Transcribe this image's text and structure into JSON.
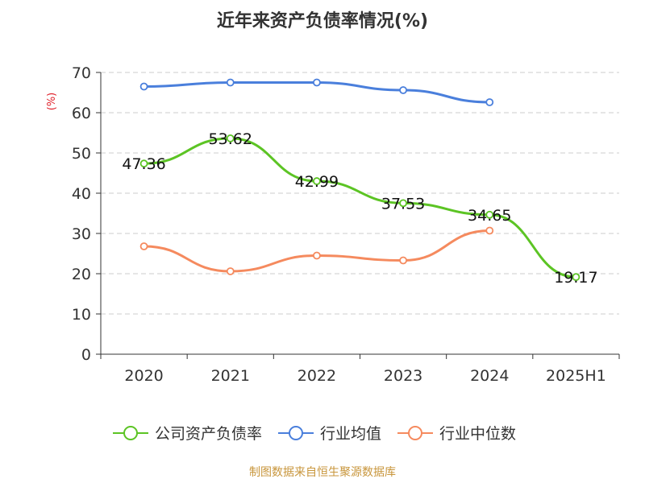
{
  "chart_data": {
    "type": "line",
    "title": "近年来资产负债率情况(%)",
    "ylabel": "(%)",
    "xlabel": "",
    "categories": [
      "2020",
      "2021",
      "2022",
      "2023",
      "2024",
      "2025H1"
    ],
    "ylim": [
      0,
      70
    ],
    "yticks": [
      0,
      10,
      20,
      30,
      40,
      50,
      60,
      70
    ],
    "grid": true,
    "legend_position": "bottom",
    "series": [
      {
        "name": "公司资产负债率",
        "color": "#5cc424",
        "values": [
          47.36,
          53.62,
          42.99,
          37.53,
          34.65,
          19.17
        ],
        "labels": [
          "47.36",
          "53.62",
          "42.99",
          "37.53",
          "34.65",
          "19.17"
        ]
      },
      {
        "name": "行业均值",
        "color": "#4a7fdc",
        "values": [
          66.5,
          67.5,
          67.5,
          65.6,
          62.6,
          null
        ]
      },
      {
        "name": "行业中位数",
        "color": "#f58a5e",
        "values": [
          26.8,
          20.6,
          24.5,
          23.3,
          30.7,
          null
        ]
      }
    ]
  },
  "source_note": "制图数据来自恒生聚源数据库"
}
